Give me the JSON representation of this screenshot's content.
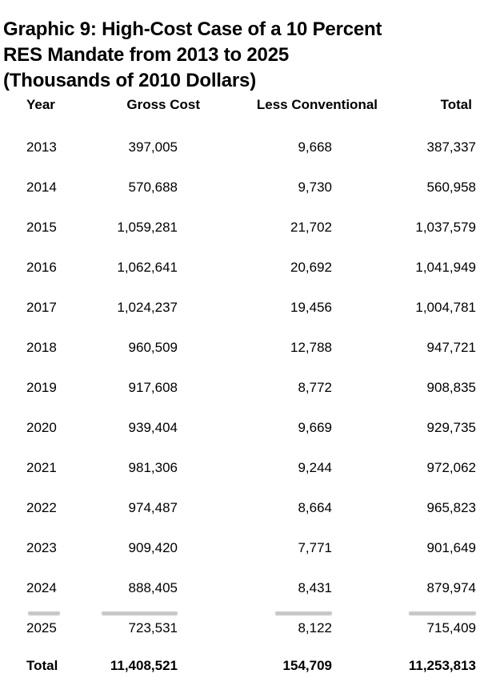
{
  "title_lines": [
    "Graphic 9: High-Cost Case of a 10 Percent",
    "RES Mandate from 2013 to 2025",
    "(Thousands of 2010 Dollars)"
  ],
  "table": {
    "headers": [
      "Year",
      "Gross Cost",
      "Less Conventional",
      "Total"
    ],
    "rows": [
      {
        "year": "2013",
        "gross_cost": "397,005",
        "less_conventional": "9,668",
        "total": "387,337"
      },
      {
        "year": "2014",
        "gross_cost": "570,688",
        "less_conventional": "9,730",
        "total": "560,958"
      },
      {
        "year": "2015",
        "gross_cost": "1,059,281",
        "less_conventional": "21,702",
        "total": "1,037,579"
      },
      {
        "year": "2016",
        "gross_cost": "1,062,641",
        "less_conventional": "20,692",
        "total": "1,041,949"
      },
      {
        "year": "2017",
        "gross_cost": "1,024,237",
        "less_conventional": "19,456",
        "total": "1,004,781"
      },
      {
        "year": "2018",
        "gross_cost": "960,509",
        "less_conventional": "12,788",
        "total": "947,721"
      },
      {
        "year": "2019",
        "gross_cost": "917,608",
        "less_conventional": "8,772",
        "total": "908,835"
      },
      {
        "year": "2020",
        "gross_cost": "939,404",
        "less_conventional": "9,669",
        "total": "929,735"
      },
      {
        "year": "2021",
        "gross_cost": "981,306",
        "less_conventional": "9,244",
        "total": "972,062"
      },
      {
        "year": "2022",
        "gross_cost": "974,487",
        "less_conventional": "8,664",
        "total": "965,823"
      },
      {
        "year": "2023",
        "gross_cost": "909,420",
        "less_conventional": "7,771",
        "total": "901,649"
      },
      {
        "year": "2024",
        "gross_cost": "888,405",
        "less_conventional": "8,431",
        "total": "879,974"
      },
      {
        "year": "2025",
        "gross_cost": "723,531",
        "less_conventional": "8,122",
        "total": "715,409"
      }
    ],
    "total_row": {
      "label": "Total",
      "gross_cost": "11,408,521",
      "less_conventional": "154,709",
      "total": "11,253,813"
    }
  },
  "chart_data": {
    "type": "table",
    "title": "Graphic 9: High-Cost Case of a 10 Percent RES Mandate from 2013 to 2025 (Thousands of 2010 Dollars)",
    "units": "Thousands of 2010 Dollars",
    "columns": [
      "Year",
      "Gross Cost",
      "Less Conventional",
      "Total"
    ],
    "rows": [
      [
        2013,
        397005,
        9668,
        387337
      ],
      [
        2014,
        570688,
        9730,
        560958
      ],
      [
        2015,
        1059281,
        21702,
        1037579
      ],
      [
        2016,
        1062641,
        20692,
        1041949
      ],
      [
        2017,
        1024237,
        19456,
        1004781
      ],
      [
        2018,
        960509,
        12788,
        947721
      ],
      [
        2019,
        917608,
        8772,
        908835
      ],
      [
        2020,
        939404,
        9669,
        929735
      ],
      [
        2021,
        981306,
        9244,
        972062
      ],
      [
        2022,
        974487,
        8664,
        965823
      ],
      [
        2023,
        909420,
        7771,
        901649
      ],
      [
        2024,
        888405,
        8431,
        879974
      ],
      [
        2025,
        723531,
        8122,
        715409
      ]
    ],
    "totals": {
      "gross_cost": 11408521,
      "less_conventional": 154709,
      "total": 11253813
    }
  },
  "colors": {
    "text": "#000000",
    "background": "#ffffff"
  }
}
